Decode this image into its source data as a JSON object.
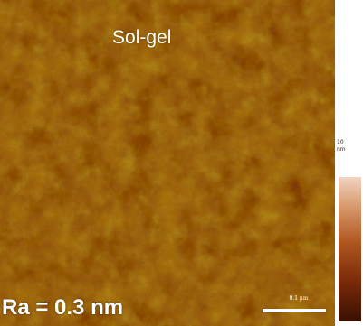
{
  "panel_label": "Sol-gel",
  "roughness_label": "Ra = 0.3 nm",
  "scale_bar_label": "0.1 µm",
  "colorbar": {
    "top_label": "10",
    "unit_label": "nm"
  },
  "colors": {
    "surface_base": "#b07c13",
    "surface_dark": "#7a2c08",
    "surface_light": "#c8b222",
    "text": "#ffffff"
  }
}
